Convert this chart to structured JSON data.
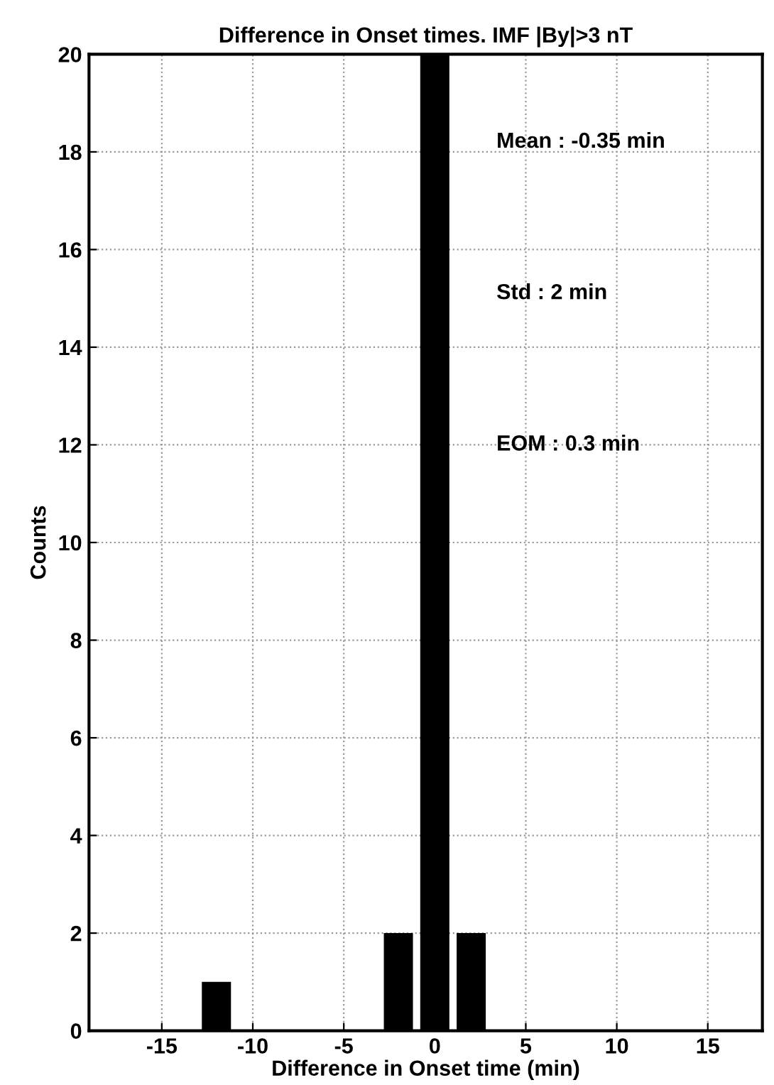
{
  "chart_data": {
    "type": "histogram",
    "title": "Difference in Onset times. IMF |By|>3 nT",
    "xlabel": "Difference in Onset time (min)",
    "ylabel": "Counts",
    "bins": [
      -13,
      -11,
      -9,
      -7,
      -5,
      -3,
      -1,
      1,
      3
    ],
    "values": [
      1,
      0,
      0,
      0,
      0,
      2,
      20,
      2
    ],
    "color": "#000000",
    "xlim": [
      -19,
      18
    ],
    "xticks": [
      -15,
      -10,
      -5,
      0,
      5,
      10,
      15
    ],
    "ylim": [
      0,
      20
    ],
    "yticks": [
      0,
      2,
      4,
      6,
      8,
      10,
      12,
      14,
      16,
      18,
      20
    ],
    "grid": true,
    "annotations": [
      "Mean : -0.35 min",
      "Std : 2 min",
      "EOM : 0.3 min"
    ]
  }
}
